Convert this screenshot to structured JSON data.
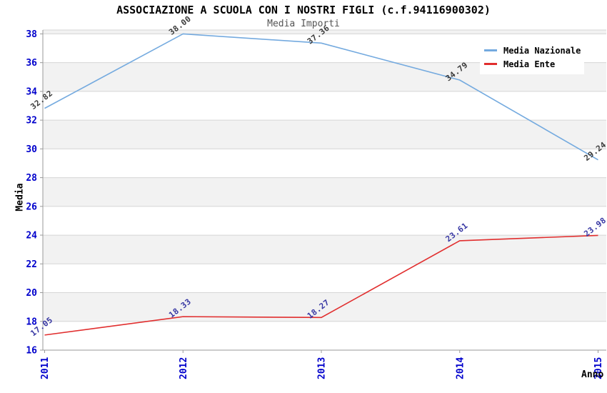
{
  "chart_data": {
    "type": "line",
    "title": "ASSOCIAZIONE A SCUOLA CON I NOSTRI FIGLI (c.f.94116900302)",
    "subtitle": "Media Importi",
    "x": [
      "2011",
      "2012",
      "2013",
      "2014",
      "2015"
    ],
    "xlabel": "Anno",
    "ylabel": "Media",
    "ylim": [
      16,
      38.27
    ],
    "yticks": [
      16,
      18,
      20,
      22,
      24,
      26,
      28,
      30,
      32,
      34,
      36,
      38
    ],
    "grid": true,
    "legend_position": "top-right",
    "value_labels": "shown, rotated, two decimals",
    "series": [
      {
        "name": "Media Nazionale",
        "color": "#74aadf",
        "label_color": "#3a3a3a",
        "values": [
          32.82,
          38.0,
          37.36,
          34.79,
          29.24
        ]
      },
      {
        "name": "Media Ente",
        "color": "#e12e2e",
        "label_color": "#3636a3",
        "values": [
          17.05,
          18.33,
          18.27,
          23.61,
          23.98
        ]
      }
    ]
  },
  "colors": {
    "tick_label": "#0000cc",
    "gridline": "#d6d6d6",
    "band": "#f2f2f2",
    "axis": "#999999"
  }
}
